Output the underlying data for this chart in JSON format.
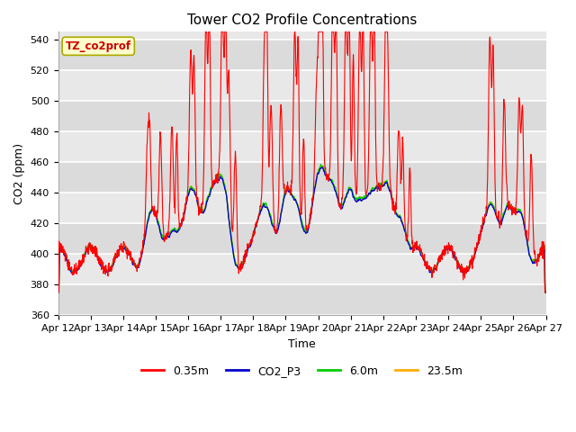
{
  "title": "Tower CO2 Profile Concentrations",
  "xlabel": "Time",
  "ylabel": "CO2 (ppm)",
  "ylim": [
    360,
    545
  ],
  "yticks": [
    360,
    380,
    400,
    420,
    440,
    460,
    480,
    500,
    520,
    540
  ],
  "date_labels": [
    "Apr 12",
    "Apr 13",
    "Apr 14",
    "Apr 15",
    "Apr 16",
    "Apr 17",
    "Apr 18",
    "Apr 19",
    "Apr 20",
    "Apr 21",
    "Apr 22",
    "Apr 23",
    "Apr 24",
    "Apr 25",
    "Apr 26",
    "Apr 27"
  ],
  "legend_labels": [
    "0.35m",
    "CO2_P3",
    "6.0m",
    "23.5m"
  ],
  "legend_colors": [
    "#ff0000",
    "#0000cc",
    "#00cc00",
    "#ffaa00"
  ],
  "tag_text": "TZ_co2prof",
  "tag_bg": "#ffffcc",
  "tag_border": "#aaaa00",
  "tag_text_color": "#cc0000",
  "fig_bg": "#ffffff",
  "plot_bg": "#e8e8e8",
  "grid_color": "#ffffff",
  "title_fontsize": 11,
  "axis_fontsize": 9,
  "tick_fontsize": 8
}
